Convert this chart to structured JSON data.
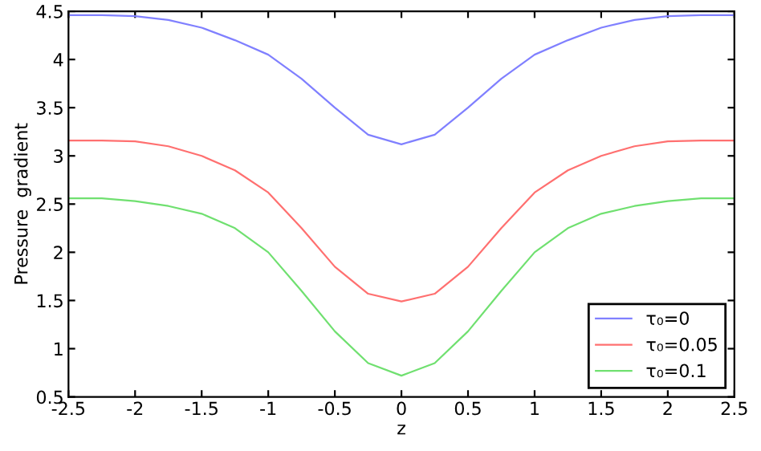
{
  "chart_data": {
    "type": "line",
    "xlabel": "z",
    "ylabel": "Pressure  gradient",
    "x": [
      -2.5,
      -2.25,
      -2,
      -1.75,
      -1.5,
      -1.25,
      -1,
      -0.75,
      -0.5,
      -0.25,
      0,
      0.25,
      0.5,
      0.75,
      1,
      1.25,
      1.5,
      1.75,
      2,
      2.25,
      2.5
    ],
    "series": [
      {
        "name": "τ₀=0",
        "color": "#8080ff",
        "values": [
          4.46,
          4.46,
          4.45,
          4.41,
          4.33,
          4.2,
          4.05,
          3.8,
          3.5,
          3.22,
          3.12,
          3.22,
          3.5,
          3.8,
          4.05,
          4.2,
          4.33,
          4.41,
          4.45,
          4.46,
          4.46
        ]
      },
      {
        "name": "τ₀=0.05",
        "color": "#ff7070",
        "values": [
          3.16,
          3.16,
          3.15,
          3.1,
          3.0,
          2.85,
          2.62,
          2.25,
          1.85,
          1.57,
          1.49,
          1.57,
          1.85,
          2.25,
          2.62,
          2.85,
          3.0,
          3.1,
          3.15,
          3.16,
          3.16
        ]
      },
      {
        "name": "τ₀=0.1",
        "color": "#70e070",
        "values": [
          2.56,
          2.56,
          2.53,
          2.48,
          2.4,
          2.25,
          2.0,
          1.6,
          1.18,
          0.85,
          0.72,
          0.85,
          1.18,
          1.6,
          2.0,
          2.25,
          2.4,
          2.48,
          2.53,
          2.56,
          2.56
        ]
      }
    ],
    "xlim": [
      -2.5,
      2.5
    ],
    "ylim": [
      0.5,
      4.5
    ],
    "xticks": [
      -2.5,
      -2,
      -1.5,
      -1,
      -0.5,
      0,
      0.5,
      1,
      1.5,
      2,
      2.5
    ],
    "yticks": [
      0.5,
      1,
      1.5,
      2,
      2.5,
      3,
      3.5,
      4,
      4.5
    ],
    "legend": "bottom right",
    "grid": false,
    "marker": "none",
    "line_style": "solid"
  }
}
